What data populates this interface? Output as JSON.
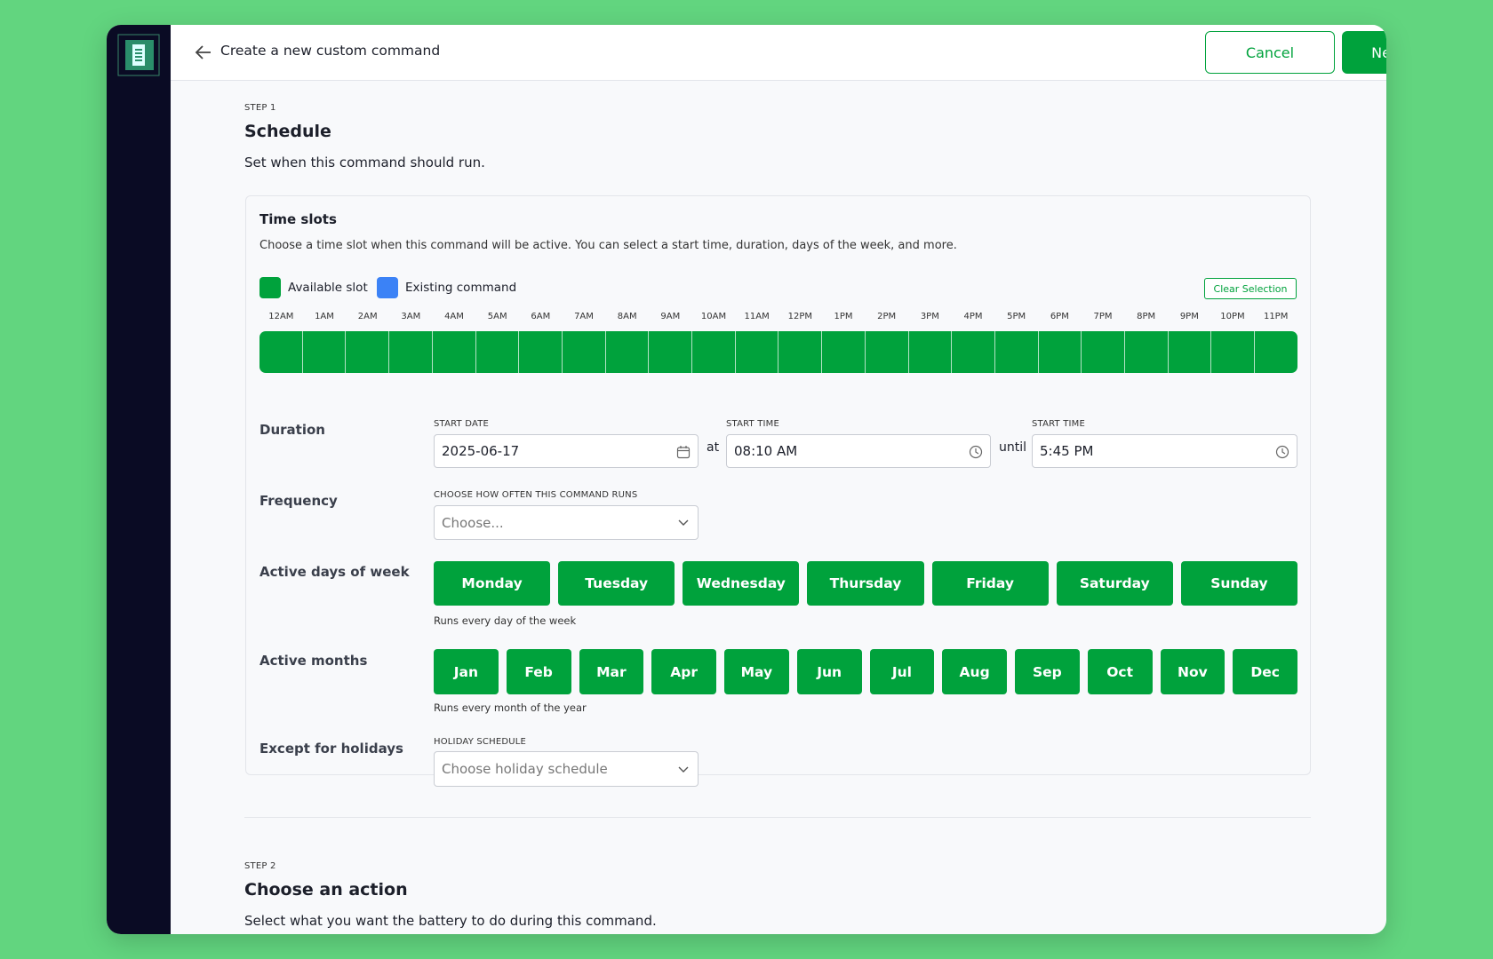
{
  "header": {
    "title": "Create a new custom command",
    "cancel": "Cancel",
    "next": "Next Step"
  },
  "step1": {
    "label": "STEP 1",
    "title": "Schedule",
    "description": "Set when this command should run."
  },
  "card": {
    "title": "Time slots",
    "description": "Choose a time slot when this command will be active. You can select a start time, duration, days of the week, and more.",
    "legend": [
      "Available slot",
      "Existing command"
    ],
    "clear": "Clear Selection",
    "hours": [
      "12AM",
      "1AM",
      "2AM",
      "3AM",
      "4AM",
      "5AM",
      "6AM",
      "7AM",
      "8AM",
      "9AM",
      "10AM",
      "11AM",
      "12PM",
      "1PM",
      "2PM",
      "3PM",
      "4PM",
      "5PM",
      "6PM",
      "7PM",
      "8PM",
      "9PM",
      "10PM",
      "11PM"
    ],
    "duration": {
      "label": "Duration",
      "start_date_label": "START DATE",
      "start_date": "2025-06-17",
      "at": "at",
      "start_time_label": "START TIME",
      "start_time": "08:10 AM",
      "until": "until",
      "end_time_label": "START TIME",
      "end_time": "5:45 PM"
    },
    "frequency": {
      "label": "Frequency",
      "field_label": "CHOOSE HOW OFTEN THIS COMMAND RUNS",
      "placeholder": "Choose..."
    },
    "days": {
      "label": "Active days of week",
      "items": [
        "Monday",
        "Tuesday",
        "Wednesday",
        "Thursday",
        "Friday",
        "Saturday",
        "Sunday"
      ],
      "note": "Runs every day of the week"
    },
    "months": {
      "label": "Active months",
      "items": [
        "Jan",
        "Feb",
        "Mar",
        "Apr",
        "May",
        "Jun",
        "Jul",
        "Aug",
        "Sep",
        "Oct",
        "Nov",
        "Dec"
      ],
      "note": "Runs every month of the year"
    },
    "holidays": {
      "label": "Except for holidays",
      "field_label": "HOLIDAY SCHEDULE",
      "placeholder": "Choose holiday schedule"
    }
  },
  "step2": {
    "label": "STEP 2",
    "title": "Choose an action",
    "description": "Select what you want the battery to do during this command."
  }
}
